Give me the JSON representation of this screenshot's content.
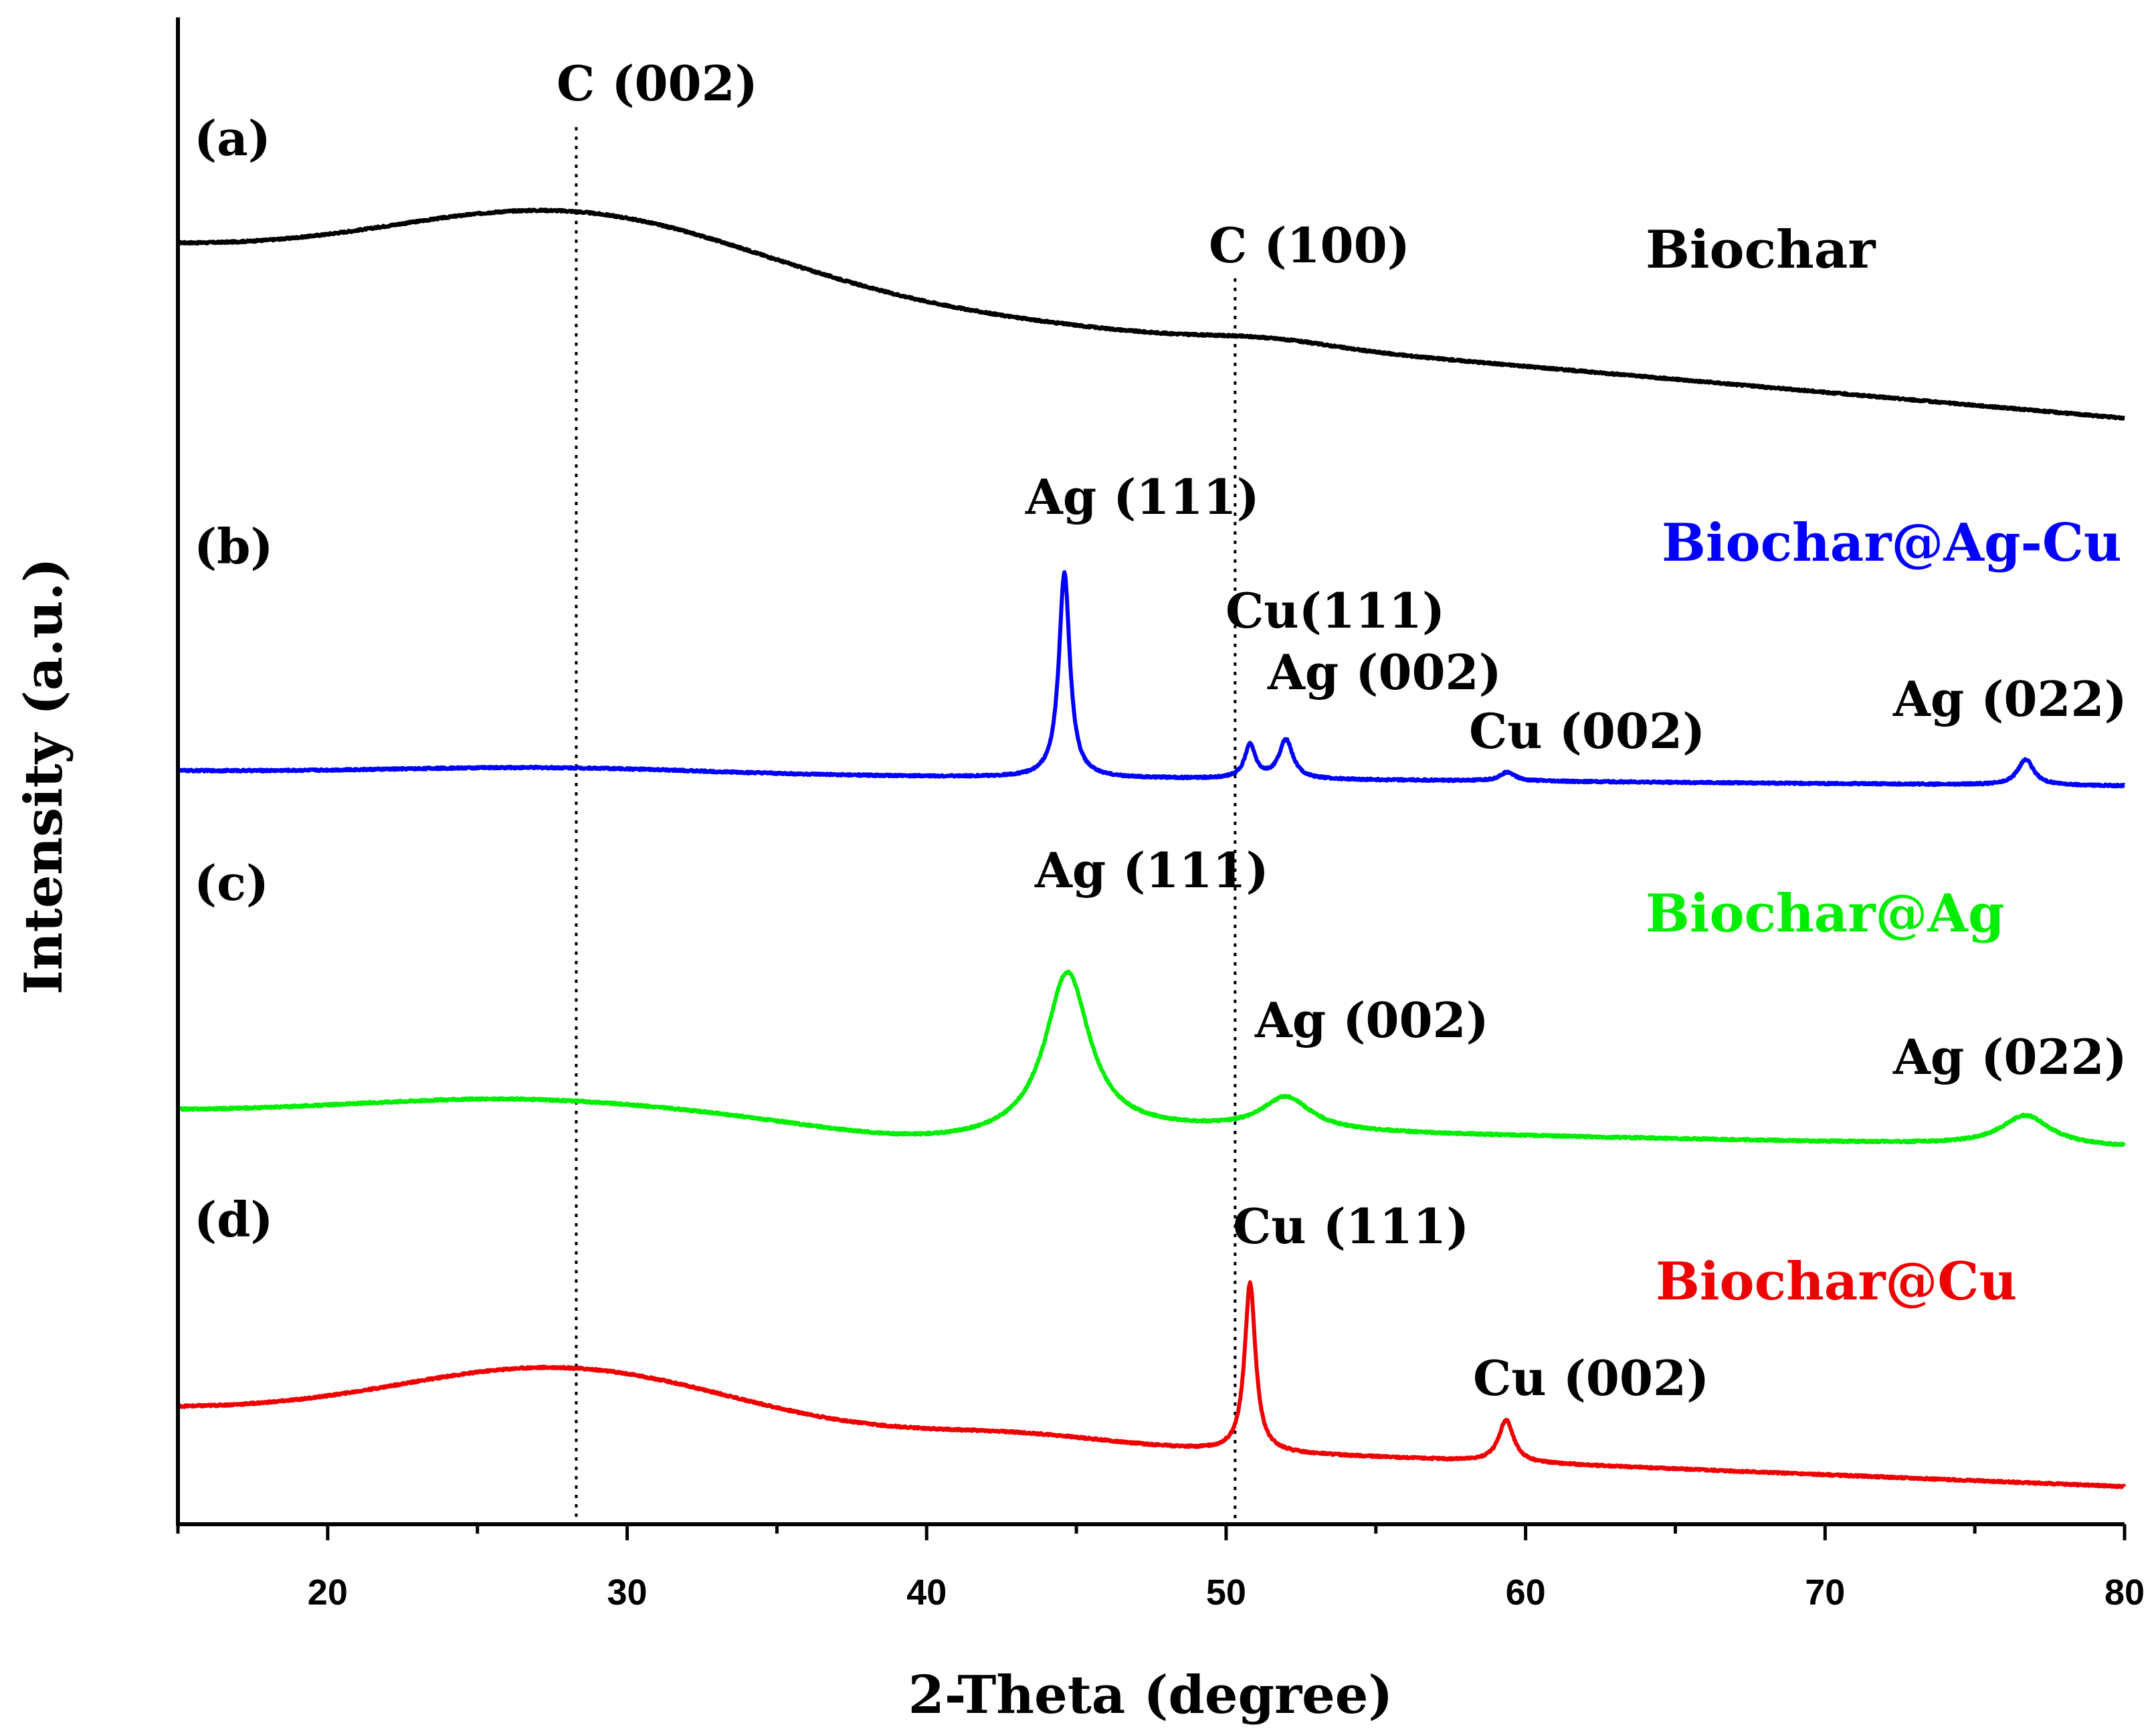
{
  "chart_data": {
    "type": "line",
    "title": "",
    "xlabel": "2-Theta (degree)",
    "ylabel": "Intensity (a.u.)",
    "xlim": [
      15,
      80
    ],
    "ylim": [
      0,
      10
    ],
    "x_ticks": [
      20,
      30,
      40,
      50,
      60,
      70,
      80
    ],
    "y_ticks_shown": false,
    "grid": false,
    "reference_lines": [
      {
        "name": "c002",
        "label": "C (002)",
        "x": 28.3
      },
      {
        "name": "c100",
        "label": "C (100)",
        "x": 50.3
      }
    ],
    "series": [
      {
        "name": "biochar",
        "panel": "(a)",
        "label": "Biochar",
        "color": "#000000",
        "baseline_start": 8.46,
        "baseline_end": 7.34,
        "bumps": [
          {
            "center": 28.5,
            "height": 0.48,
            "width": 6.2
          },
          {
            "center": 51.5,
            "height": 0.04,
            "width": 2.0
          }
        ],
        "peaks": []
      },
      {
        "name": "biochar-ag-cu",
        "panel": "(b)",
        "label": "Biochar@Ag-Cu",
        "color": "#0000ff",
        "baseline_start": 5.0,
        "baseline_end": 4.9,
        "bumps": [
          {
            "center": 27.5,
            "height": 0.04,
            "width": 5.0
          }
        ],
        "peaks": [
          {
            "label": "Ag (111)",
            "x": 44.6,
            "height": 1.36,
            "width": 0.22
          },
          {
            "label": "Cu(111)",
            "x": 50.8,
            "height": 0.22,
            "width": 0.22
          },
          {
            "label": "Ag (002)",
            "x": 52.0,
            "height": 0.26,
            "width": 0.28
          },
          {
            "label": "Cu (002)",
            "x": 59.4,
            "height": 0.06,
            "width": 0.3
          },
          {
            "label": "Ag (022)",
            "x": 76.7,
            "height": 0.17,
            "width": 0.32
          }
        ]
      },
      {
        "name": "biochar-ag",
        "panel": "(c)",
        "label": "Biochar@Ag",
        "color": "#00ee00",
        "baseline_start": 2.74,
        "baseline_end": 2.5,
        "bumps": [
          {
            "center": 26.5,
            "height": 0.12,
            "width": 5.5
          },
          {
            "center": 40.0,
            "height": -0.1,
            "width": 3.5
          }
        ],
        "peaks": [
          {
            "label": "Ag (111)",
            "x": 44.7,
            "height": 1.07,
            "width": 0.9
          },
          {
            "label": "Ag (002)",
            "x": 52.0,
            "height": 0.22,
            "width": 1.0
          },
          {
            "label": "Ag (022)",
            "x": 76.7,
            "height": 0.2,
            "width": 1.0
          }
        ]
      },
      {
        "name": "biochar-cu",
        "panel": "(d)",
        "label": "Biochar@Cu",
        "color": "#ee0000",
        "baseline_start": 0.76,
        "baseline_end": 0.25,
        "bumps": [
          {
            "center": 28.0,
            "height": 0.38,
            "width": 5.5
          },
          {
            "center": 43.0,
            "height": 0.06,
            "width": 3.0
          }
        ],
        "peaks": [
          {
            "label": "Cu (111)",
            "x": 50.8,
            "height": 1.12,
            "width": 0.22
          },
          {
            "label": "Cu (002)",
            "x": 59.35,
            "height": 0.28,
            "width": 0.3
          }
        ]
      }
    ]
  }
}
